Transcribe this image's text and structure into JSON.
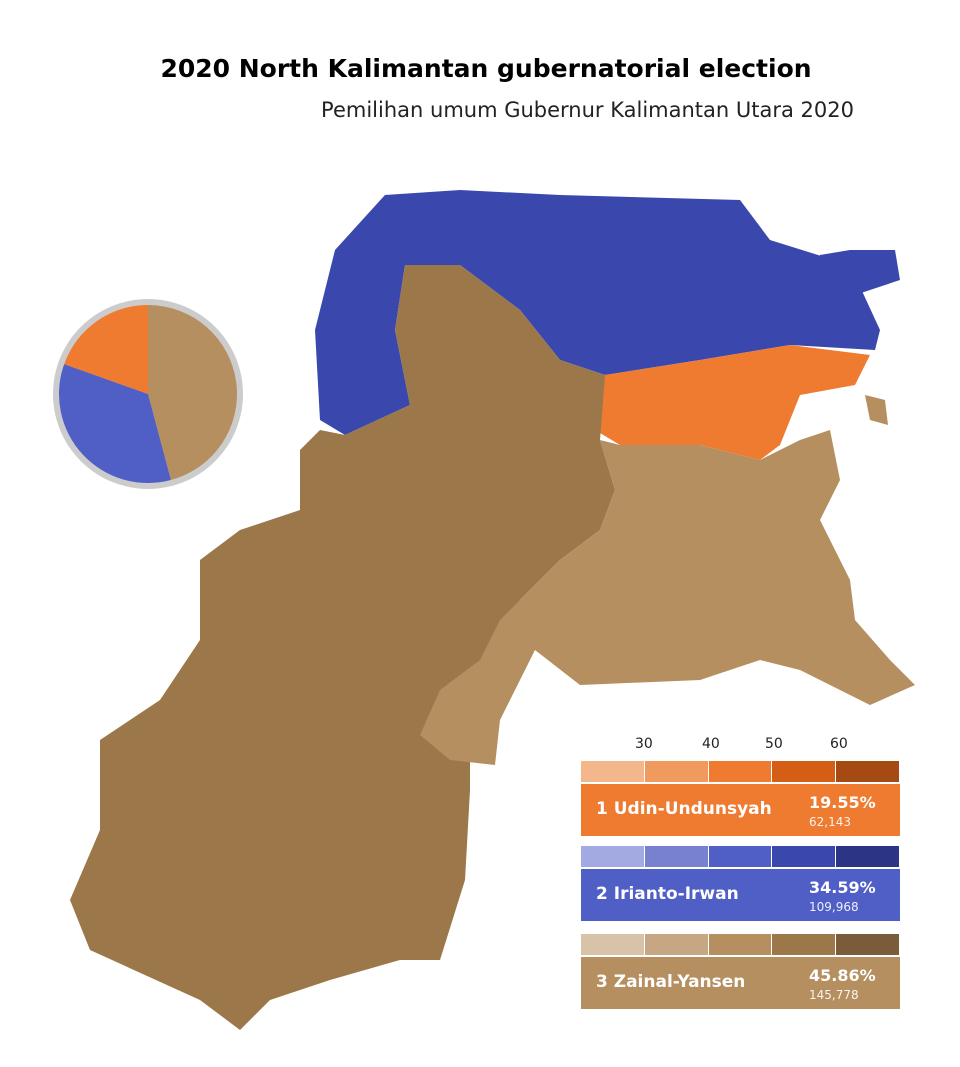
{
  "title": "2020 North Kalimantan gubernatorial election",
  "subtitle": "Pemilihan umum Gubernur Kalimantan Utara 2020",
  "legend": {
    "ticks": [
      "30",
      "40",
      "50",
      "60"
    ],
    "candidates": [
      {
        "label": "1  Udin-Undunsyah",
        "percent": "19.55%",
        "votes": "62,143",
        "share": 19.55,
        "color": "#ee7b30",
        "scale": [
          "#f4b68b",
          "#f19a5e",
          "#ee7b30",
          "#d45e16",
          "#a44a12"
        ]
      },
      {
        "label": "2  Irianto-Irwan",
        "percent": "34.59%",
        "votes": "109,968",
        "share": 34.59,
        "color": "#505fc6",
        "scale": [
          "#a3aae2",
          "#7880d0",
          "#505fc6",
          "#3a47ad",
          "#2c3585"
        ]
      },
      {
        "label": "3  Zainal-Yansen",
        "percent": "45.86%",
        "votes": "145,778",
        "share": 45.86,
        "color": "#b58f60",
        "scale": [
          "#d8c2a8",
          "#c6a683",
          "#b58f60",
          "#9b7749",
          "#7a5c3a"
        ]
      }
    ]
  }
}
